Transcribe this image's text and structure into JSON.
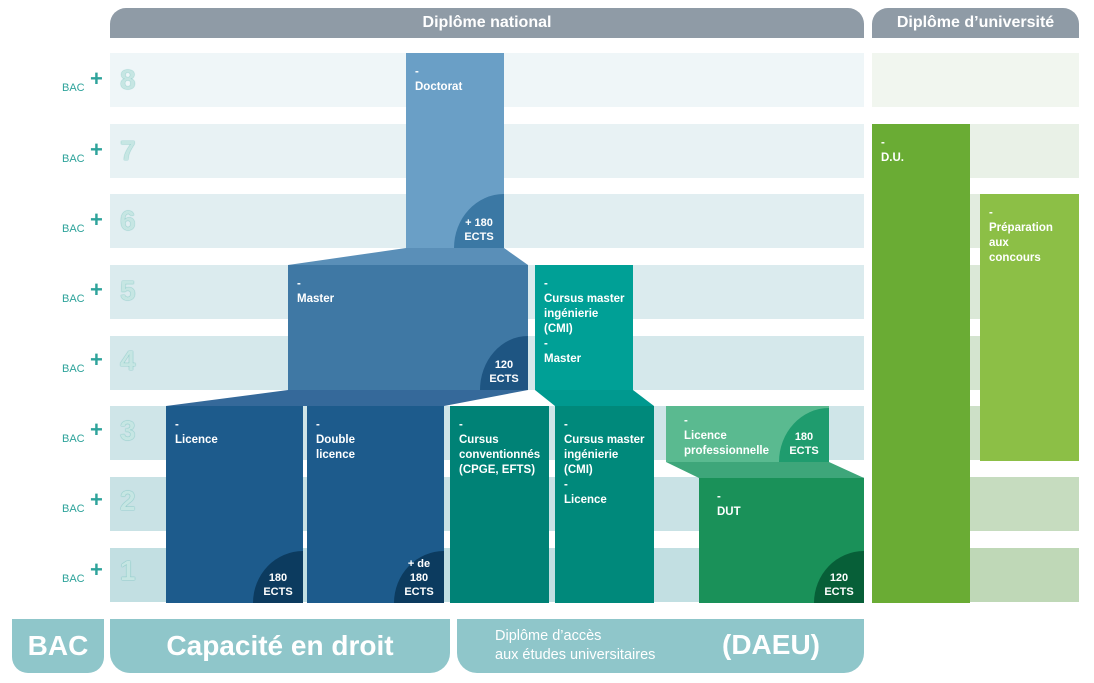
{
  "headers": {
    "national": "Diplôme national",
    "universite": "Diplôme d’université"
  },
  "levels": [
    {
      "bac": "BAC",
      "plus": "+",
      "num": "8"
    },
    {
      "bac": "BAC",
      "plus": "+",
      "num": "7"
    },
    {
      "bac": "BAC",
      "plus": "+",
      "num": "6"
    },
    {
      "bac": "BAC",
      "plus": "+",
      "num": "5"
    },
    {
      "bac": "BAC",
      "plus": "+",
      "num": "4"
    },
    {
      "bac": "BAC",
      "plus": "+",
      "num": "3"
    },
    {
      "bac": "BAC",
      "plus": "+",
      "num": "2"
    },
    {
      "bac": "BAC",
      "plus": "+",
      "num": "1"
    }
  ],
  "blocks": {
    "doctorat": {
      "label": "-\nDoctorat",
      "ects": "+ 180\nECTS"
    },
    "master": {
      "label": "-\nMaster",
      "ects": "120\nECTS"
    },
    "cmi_master": {
      "label": "-\nCursus master\ningénierie\n(CMI)\n-\nMaster"
    },
    "licence": {
      "label": "-\nLicence",
      "ects": "180\nECTS"
    },
    "double_licence": {
      "label": "-\nDouble\nlicence",
      "ects": "+ de\n180\nECTS"
    },
    "cursus_conv": {
      "label": "-\nCursus\nconventionnés\n(CPGE, EFTS)"
    },
    "cmi_licence": {
      "label": "-\nCursus master\ningénierie\n(CMI)\n-\nLicence"
    },
    "licence_pro": {
      "label": "-\nLicence\nprofessionnelle",
      "ects": "180\nECTS"
    },
    "dut": {
      "label": "-\nDUT",
      "ects": "120\nECTS"
    },
    "du": {
      "label": "-\nD.U."
    },
    "concours": {
      "label": "-\nPréparation\naux\nconcours"
    }
  },
  "footer": {
    "bac": "BAC",
    "capacite": "Capacité en droit",
    "daeu_text": "Diplôme d’accès\naux études universitaires",
    "daeu_abbr": "(DAEU)"
  },
  "colors": {
    "doctorat": "#6a9fc6",
    "master": "#3f78a4",
    "licence": "#1d5b8c",
    "teal": "#009f95",
    "green_dark": "#00826f",
    "licence_pro": "#5aba90",
    "dut": "#1a9159",
    "du": "#6aac34",
    "concours": "#8cbf46"
  }
}
